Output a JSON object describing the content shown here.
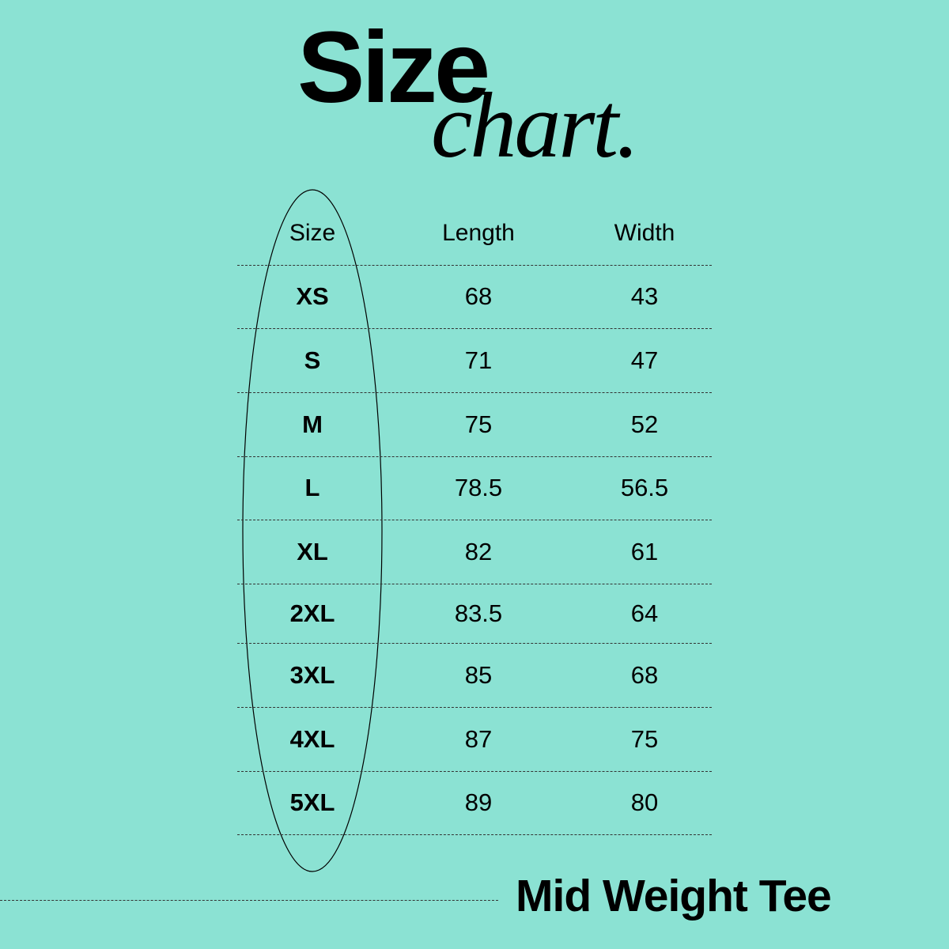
{
  "title": {
    "main": "Size",
    "script": "chart."
  },
  "table": {
    "headers": [
      "Size",
      "Length",
      "Width"
    ],
    "rows": [
      [
        "XS",
        "68",
        "43"
      ],
      [
        "S",
        "71",
        "47"
      ],
      [
        "M",
        "75",
        "52"
      ],
      [
        "L",
        "78.5",
        "56.5"
      ],
      [
        "XL",
        "82",
        "61"
      ],
      [
        "2XL",
        "83.5",
        "64"
      ],
      [
        "3XL",
        "85",
        "68"
      ],
      [
        "4XL",
        "87",
        "75"
      ],
      [
        "5XL",
        "89",
        "80"
      ]
    ]
  },
  "footer": {
    "product": "Mid Weight Tee"
  },
  "colors": {
    "background": "#8be2d3",
    "text": "#000000"
  }
}
